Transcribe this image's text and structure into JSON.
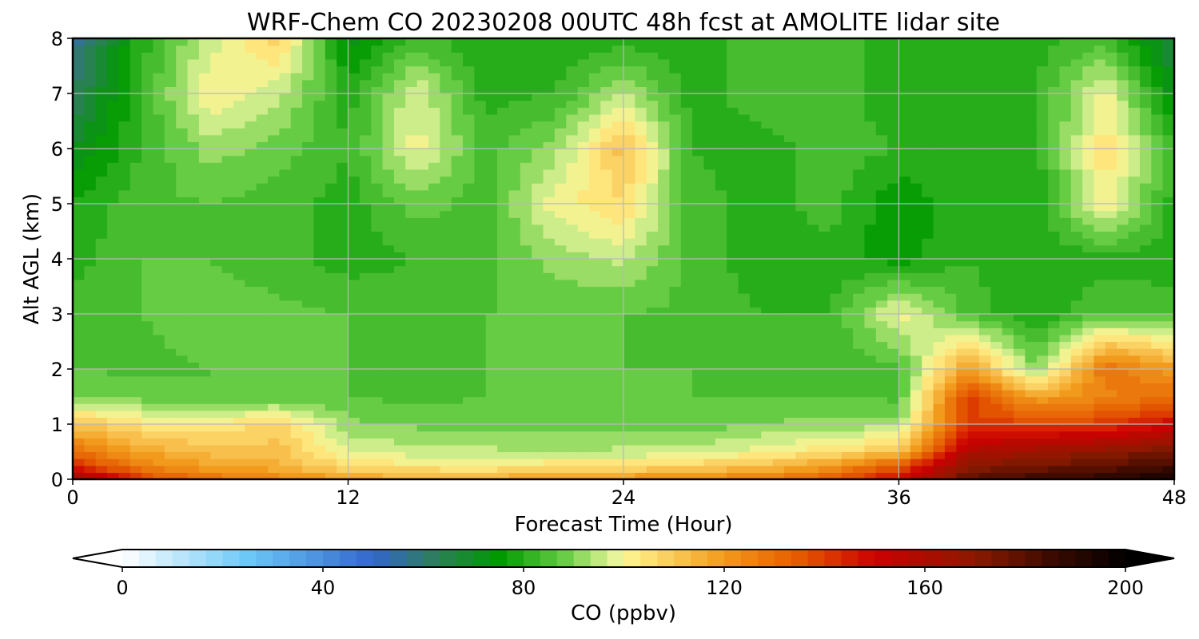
{
  "chart_data": {
    "type": "heatmap",
    "title": "WRF-Chem CO  20230208 00UTC 48h fcst at AMOLITE lidar site",
    "xlabel": "Forecast Time (Hour)",
    "ylabel": "Alt AGL (km)",
    "xlim": [
      0,
      48
    ],
    "ylim": [
      0,
      8
    ],
    "x_ticks": [
      "0",
      "12",
      "24",
      "36",
      "48"
    ],
    "y_ticks": [
      "0",
      "1",
      "2",
      "3",
      "4",
      "5",
      "6",
      "7",
      "8"
    ],
    "grid": true,
    "x_hours": [
      0,
      3,
      6,
      9,
      12,
      15,
      18,
      21,
      24,
      27,
      30,
      33,
      36,
      39,
      42,
      45,
      48
    ],
    "y_km": [
      0,
      0.25,
      0.5,
      1,
      1.5,
      2,
      3,
      4,
      5,
      6,
      7,
      8
    ],
    "values_ppbv": [
      [
        165,
        140,
        130,
        125,
        118,
        116,
        116,
        120,
        122,
        124,
        128,
        135,
        150,
        180,
        185,
        190,
        195
      ],
      [
        145,
        125,
        118,
        115,
        106,
        103,
        102,
        105,
        105,
        108,
        112,
        120,
        135,
        170,
        175,
        178,
        185
      ],
      [
        130,
        118,
        112,
        112,
        98,
        96,
        95,
        94,
        95,
        96,
        100,
        105,
        112,
        160,
        165,
        170,
        175
      ],
      [
        112,
        104,
        102,
        108,
        91,
        89,
        88,
        88,
        88,
        88,
        90,
        92,
        92,
        140,
        140,
        140,
        150
      ],
      [
        90,
        88,
        86,
        86,
        86,
        85,
        86,
        86,
        86,
        86,
        86,
        86,
        85,
        140,
        118,
        125,
        130
      ],
      [
        86,
        85,
        86,
        86,
        86,
        85,
        86,
        86,
        86,
        86,
        84,
        84,
        84,
        120,
        90,
        130,
        120
      ],
      [
        85,
        86,
        88,
        87,
        86,
        85,
        86,
        86,
        86,
        85,
        82,
        82,
        100,
        85,
        78,
        86,
        84
      ],
      [
        80,
        86,
        86,
        84,
        80,
        82,
        84,
        92,
        95,
        84,
        80,
        80,
        76,
        82,
        78,
        80,
        80
      ],
      [
        78,
        85,
        86,
        84,
        80,
        88,
        84,
        100,
        106,
        84,
        80,
        84,
        74,
        82,
        80,
        102,
        80
      ],
      [
        70,
        82,
        92,
        88,
        82,
        100,
        84,
        92,
        112,
        82,
        80,
        84,
        82,
        82,
        80,
        105,
        82
      ],
      [
        62,
        82,
        102,
        95,
        80,
        98,
        80,
        82,
        95,
        80,
        84,
        86,
        78,
        80,
        82,
        100,
        72
      ],
      [
        55,
        80,
        96,
        108,
        72,
        84,
        78,
        78,
        80,
        78,
        86,
        84,
        80,
        78,
        80,
        84,
        65
      ]
    ],
    "colorbar": {
      "label": "CO  (ppbv)",
      "range": [
        0,
        200
      ],
      "ticks": [
        "0",
        "40",
        "80",
        "120",
        "160",
        "200"
      ],
      "extend": "both",
      "colors": [
        {
          "v": 0,
          "c": "#ffffff"
        },
        {
          "v": 25,
          "c": "#6cc8f7"
        },
        {
          "v": 50,
          "c": "#3366cc"
        },
        {
          "v": 62,
          "c": "#2e7d5e"
        },
        {
          "v": 75,
          "c": "#009900"
        },
        {
          "v": 88,
          "c": "#66cc44"
        },
        {
          "v": 98,
          "c": "#e6f59a"
        },
        {
          "v": 102,
          "c": "#ffee88"
        },
        {
          "v": 120,
          "c": "#f29a1c"
        },
        {
          "v": 135,
          "c": "#e55a00"
        },
        {
          "v": 150,
          "c": "#cc0000"
        },
        {
          "v": 170,
          "c": "#8b1a00"
        },
        {
          "v": 185,
          "c": "#3d0a00"
        },
        {
          "v": 200,
          "c": "#000000"
        }
      ]
    }
  }
}
